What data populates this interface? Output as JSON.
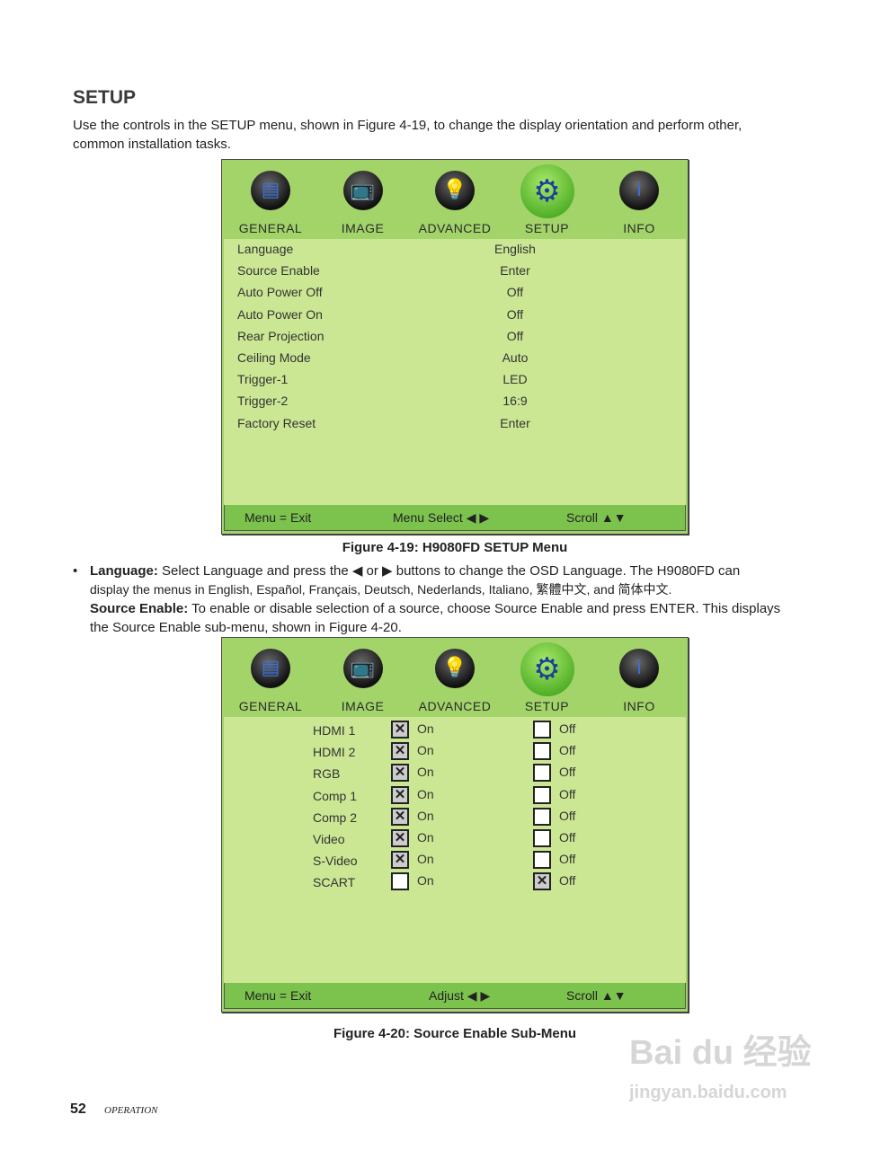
{
  "heading": "SETUP",
  "intro": [
    "Use the controls in the SETUP menu, shown in Figure 4-19, to change the display orientation and perform other,",
    "common installation tasks."
  ],
  "tabs": [
    {
      "label": "GENERAL",
      "icon": "document-icon",
      "glyph": "▤"
    },
    {
      "label": "IMAGE",
      "icon": "tv-icon",
      "glyph": "📺"
    },
    {
      "label": "ADVANCED",
      "icon": "lightbulb-icon",
      "glyph": "💡"
    },
    {
      "label": "SETUP",
      "icon": "gears-icon",
      "glyph": "⚙",
      "active": true
    },
    {
      "label": "INFO",
      "icon": "info-icon",
      "glyph": "i"
    }
  ],
  "menu1": {
    "rows": [
      {
        "label": "Language",
        "value": "English"
      },
      {
        "label": "Source Enable",
        "value": "Enter"
      },
      {
        "label": "Auto Power Off",
        "value": "Off"
      },
      {
        "label": "Auto Power On",
        "value": "Off"
      },
      {
        "label": "Rear Projection",
        "value": "Off"
      },
      {
        "label": "Ceiling Mode",
        "value": "Auto"
      },
      {
        "label": "Trigger-1",
        "value": "LED"
      },
      {
        "label": "Trigger-2",
        "value": "16:9"
      },
      {
        "label": "Factory Reset",
        "value": "Enter"
      }
    ],
    "footer": {
      "left": "Menu = Exit",
      "mid": "Menu Select ◀ ▶",
      "right": "Scroll ▲▼"
    },
    "caption": "Figure 4-19: H9080FD SETUP Menu"
  },
  "bullet": {
    "lang_label": "Language:",
    "lang_text1": " Select Language and press the ◀ or ▶ buttons to change the OSD Language. The H9080FD can",
    "lang_text2": "display the menus in English, Español, Français, Deutsch, Nederlands, Italiano, 繁體中文, and 简体中文.",
    "src_label": "Source Enable:",
    "src_text1": " To enable or disable selection of a source, choose Source Enable and press ENTER. This displays",
    "src_text2": "the Source Enable sub-menu, shown in Figure 4-20."
  },
  "menu2": {
    "on_label": "On",
    "off_label": "Off",
    "rows": [
      {
        "label": "HDMI 1",
        "enabled": true
      },
      {
        "label": "HDMI 2",
        "enabled": true
      },
      {
        "label": "RGB",
        "enabled": true
      },
      {
        "label": "Comp 1",
        "enabled": true
      },
      {
        "label": "Comp 2",
        "enabled": true
      },
      {
        "label": "Video",
        "enabled": true
      },
      {
        "label": "S-Video",
        "enabled": true
      },
      {
        "label": "SCART",
        "enabled": false
      }
    ],
    "footer": {
      "left": "Menu = Exit",
      "mid": "Adjust ◀ ▶",
      "right": "Scroll ▲▼"
    },
    "caption": "Figure 4-20: Source Enable Sub-Menu"
  },
  "page_number": "52",
  "section": "OPERATION",
  "watermark": "Baidu经验 jingyan.baidu.com",
  "colors": {
    "header": "#a2d46a",
    "body": "#cbe794",
    "footer": "#7cc34e"
  }
}
